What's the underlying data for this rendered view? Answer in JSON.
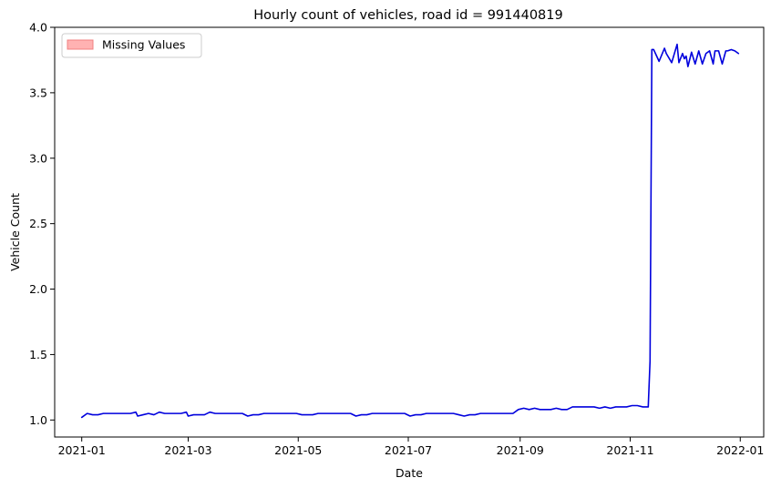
{
  "chart_data": {
    "type": "line",
    "title": "Hourly count of vehicles, road id = 991440819",
    "xlabel": "Date",
    "ylabel": "Vehicle Count",
    "xlim": [
      "2020-12-17",
      "2022-01-14"
    ],
    "ylim": [
      0.87,
      4.0
    ],
    "x_ticks": [
      "2021-01",
      "2021-03",
      "2021-05",
      "2021-07",
      "2021-09",
      "2021-11",
      "2022-01"
    ],
    "y_ticks": [
      "1.0",
      "1.5",
      "2.0",
      "2.5",
      "3.0",
      "3.5",
      "4.0"
    ],
    "grid": false,
    "legend": {
      "placement": "top-left",
      "entries": [
        {
          "label": "Missing Values",
          "color": "#ffb2b2",
          "edge_color": "#f08080"
        }
      ]
    },
    "series": [
      {
        "color": "#0000dd",
        "x": [
          "2021-01-01",
          "2021-01-04",
          "2021-01-07",
          "2021-01-10",
          "2021-01-13",
          "2021-01-16",
          "2021-01-19",
          "2021-01-22",
          "2021-01-25",
          "2021-01-28",
          "2021-01-31",
          "2021-02-01",
          "2021-02-04",
          "2021-02-07",
          "2021-02-10",
          "2021-02-13",
          "2021-02-16",
          "2021-02-19",
          "2021-02-22",
          "2021-02-25",
          "2021-02-28",
          "2021-03-01",
          "2021-03-04",
          "2021-03-07",
          "2021-03-10",
          "2021-03-13",
          "2021-03-16",
          "2021-03-19",
          "2021-03-22",
          "2021-03-25",
          "2021-03-28",
          "2021-03-31",
          "2021-04-03",
          "2021-04-06",
          "2021-04-09",
          "2021-04-12",
          "2021-04-15",
          "2021-04-18",
          "2021-04-21",
          "2021-04-24",
          "2021-04-27",
          "2021-04-30",
          "2021-05-03",
          "2021-05-06",
          "2021-05-09",
          "2021-05-12",
          "2021-05-15",
          "2021-05-18",
          "2021-05-21",
          "2021-05-24",
          "2021-05-27",
          "2021-05-30",
          "2021-06-02",
          "2021-06-05",
          "2021-06-08",
          "2021-06-11",
          "2021-06-14",
          "2021-06-17",
          "2021-06-20",
          "2021-06-23",
          "2021-06-26",
          "2021-06-29",
          "2021-07-02",
          "2021-07-05",
          "2021-07-08",
          "2021-07-11",
          "2021-07-14",
          "2021-07-17",
          "2021-07-20",
          "2021-07-23",
          "2021-07-26",
          "2021-07-29",
          "2021-08-01",
          "2021-08-04",
          "2021-08-07",
          "2021-08-10",
          "2021-08-13",
          "2021-08-16",
          "2021-08-19",
          "2021-08-22",
          "2021-08-25",
          "2021-08-28",
          "2021-08-31",
          "2021-09-03",
          "2021-09-06",
          "2021-09-09",
          "2021-09-12",
          "2021-09-15",
          "2021-09-18",
          "2021-09-21",
          "2021-09-24",
          "2021-09-27",
          "2021-09-30",
          "2021-10-03",
          "2021-10-06",
          "2021-10-09",
          "2021-10-12",
          "2021-10-15",
          "2021-10-18",
          "2021-10-21",
          "2021-10-24",
          "2021-10-27",
          "2021-10-30",
          "2021-11-02",
          "2021-11-05",
          "2021-11-08",
          "2021-11-11",
          "2021-11-12",
          "2021-11-13",
          "2021-11-14",
          "2021-11-17",
          "2021-11-20",
          "2021-11-21",
          "2021-11-24",
          "2021-11-27",
          "2021-11-28",
          "2021-11-30",
          "2021-12-01",
          "2021-12-02",
          "2021-12-03",
          "2021-12-05",
          "2021-12-07",
          "2021-12-09",
          "2021-12-11",
          "2021-12-13",
          "2021-12-15",
          "2021-12-17",
          "2021-12-18",
          "2021-12-20",
          "2021-12-22",
          "2021-12-24",
          "2021-12-25",
          "2021-12-27",
          "2021-12-29",
          "2021-12-31"
        ],
        "y": [
          1.02,
          1.05,
          1.04,
          1.04,
          1.05,
          1.05,
          1.05,
          1.05,
          1.05,
          1.05,
          1.06,
          1.03,
          1.04,
          1.05,
          1.04,
          1.06,
          1.05,
          1.05,
          1.05,
          1.05,
          1.06,
          1.03,
          1.04,
          1.04,
          1.04,
          1.06,
          1.05,
          1.05,
          1.05,
          1.05,
          1.05,
          1.05,
          1.03,
          1.04,
          1.04,
          1.05,
          1.05,
          1.05,
          1.05,
          1.05,
          1.05,
          1.05,
          1.04,
          1.04,
          1.04,
          1.05,
          1.05,
          1.05,
          1.05,
          1.05,
          1.05,
          1.05,
          1.03,
          1.04,
          1.04,
          1.05,
          1.05,
          1.05,
          1.05,
          1.05,
          1.05,
          1.05,
          1.03,
          1.04,
          1.04,
          1.05,
          1.05,
          1.05,
          1.05,
          1.05,
          1.05,
          1.04,
          1.03,
          1.04,
          1.04,
          1.05,
          1.05,
          1.05,
          1.05,
          1.05,
          1.05,
          1.05,
          1.08,
          1.09,
          1.08,
          1.09,
          1.08,
          1.08,
          1.08,
          1.09,
          1.08,
          1.08,
          1.1,
          1.1,
          1.1,
          1.1,
          1.1,
          1.09,
          1.1,
          1.09,
          1.1,
          1.1,
          1.1,
          1.11,
          1.11,
          1.1,
          1.1,
          1.45,
          3.83,
          3.83,
          3.74,
          3.84,
          3.8,
          3.73,
          3.87,
          3.73,
          3.8,
          3.76,
          3.78,
          3.7,
          3.81,
          3.72,
          3.82,
          3.72,
          3.8,
          3.82,
          3.72,
          3.82,
          3.82,
          3.72,
          3.82,
          3.82,
          3.83,
          3.82,
          3.8
        ]
      }
    ]
  }
}
